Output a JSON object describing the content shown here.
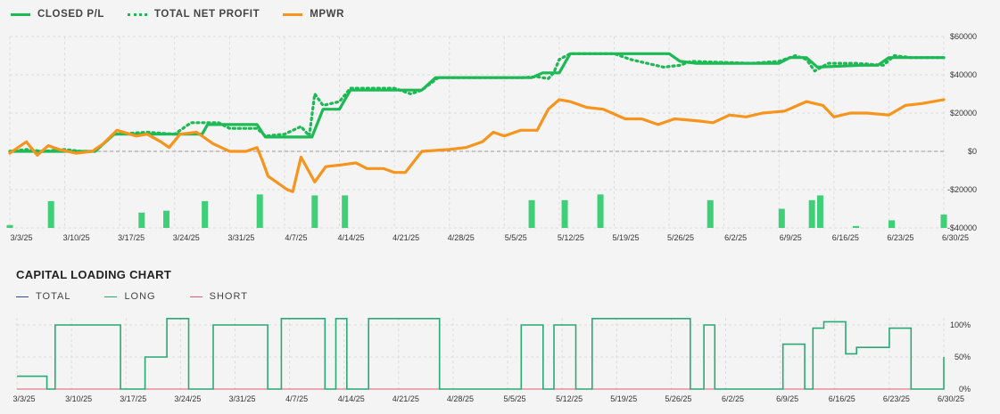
{
  "chart_data": [
    {
      "type": "line",
      "legend": [
        {
          "name": "CLOSED P/L",
          "color": "#1db954",
          "style": "solid"
        },
        {
          "name": "TOTAL NET PROFIT",
          "color": "#1db954",
          "style": "dotted"
        },
        {
          "name": "MPWR",
          "color": "#f7941d",
          "style": "solid"
        }
      ],
      "x_tick_labels": [
        "3/3/25",
        "3/10/25",
        "3/17/25",
        "3/24/25",
        "3/31/25",
        "4/7/25",
        "4/14/25",
        "4/21/25",
        "4/28/25",
        "5/5/25",
        "5/12/25",
        "5/19/25",
        "5/26/25",
        "6/2/25",
        "6/9/25",
        "6/16/25",
        "6/23/25",
        "6/30/25"
      ],
      "x_range": [
        0,
        17
      ],
      "ylim": [
        -40000,
        60000
      ],
      "y_tick_values": [
        -40000,
        -20000,
        0,
        20000,
        40000,
        60000
      ],
      "y_tick_labels": [
        "-$40000",
        "-$20000",
        "$0",
        "$20000",
        "$40000",
        "$60000"
      ],
      "grid": true,
      "series": [
        {
          "name": "CLOSED P/L",
          "points": [
            [
              0,
              0
            ],
            [
              1.55,
              0
            ],
            [
              1.9,
              9000
            ],
            [
              3.5,
              9000
            ],
            [
              3.6,
              14000
            ],
            [
              4.5,
              14000
            ],
            [
              4.65,
              7500
            ],
            [
              5.5,
              7500
            ],
            [
              5.7,
              22000
            ],
            [
              6,
              22000
            ],
            [
              6.2,
              32000
            ],
            [
              7.5,
              32000
            ],
            [
              7.75,
              38500
            ],
            [
              9.5,
              38500
            ],
            [
              9.7,
              41000
            ],
            [
              10,
              41000
            ],
            [
              10.2,
              51000
            ],
            [
              12,
              51000
            ],
            [
              12.2,
              47000
            ],
            [
              12.5,
              46000
            ],
            [
              14,
              46000
            ],
            [
              14.2,
              49000
            ],
            [
              14.5,
              49000
            ],
            [
              14.7,
              44000
            ],
            [
              15.5,
              45000
            ],
            [
              15.8,
              45000
            ],
            [
              16,
              49000
            ],
            [
              17,
              49000
            ]
          ]
        },
        {
          "name": "TOTAL NET PROFIT",
          "points": [
            [
              0,
              0
            ],
            [
              0.3,
              1000
            ],
            [
              0.6,
              0
            ],
            [
              1,
              1000
            ],
            [
              1.3,
              0
            ],
            [
              1.55,
              0
            ],
            [
              1.9,
              9000
            ],
            [
              2.5,
              10000
            ],
            [
              3,
              9000
            ],
            [
              3.3,
              15000
            ],
            [
              3.8,
              15000
            ],
            [
              4,
              12000
            ],
            [
              4.5,
              12000
            ],
            [
              4.65,
              8000
            ],
            [
              5,
              9000
            ],
            [
              5.3,
              13000
            ],
            [
              5.45,
              8000
            ],
            [
              5.55,
              30000
            ],
            [
              5.7,
              24000
            ],
            [
              6,
              26000
            ],
            [
              6.2,
              33000
            ],
            [
              7,
              33000
            ],
            [
              7.3,
              30000
            ],
            [
              7.5,
              32000
            ],
            [
              7.8,
              38500
            ],
            [
              9.3,
              38500
            ],
            [
              9.6,
              39000
            ],
            [
              9.8,
              38000
            ],
            [
              9.9,
              41000
            ],
            [
              10,
              48000
            ],
            [
              10.2,
              51000
            ],
            [
              11,
              51000
            ],
            [
              11.3,
              48000
            ],
            [
              11.6,
              46000
            ],
            [
              11.9,
              44000
            ],
            [
              12.2,
              45000
            ],
            [
              12.4,
              47000
            ],
            [
              13.5,
              46000
            ],
            [
              14,
              47000
            ],
            [
              14.3,
              50000
            ],
            [
              14.5,
              48000
            ],
            [
              14.65,
              42000
            ],
            [
              14.9,
              46000
            ],
            [
              15.4,
              46000
            ],
            [
              15.9,
              45000
            ],
            [
              16.1,
              50000
            ],
            [
              16.4,
              49000
            ],
            [
              17,
              49000
            ]
          ]
        },
        {
          "name": "MPWR",
          "points": [
            [
              0,
              -1000
            ],
            [
              0.3,
              5000
            ],
            [
              0.5,
              -2000
            ],
            [
              0.7,
              3000
            ],
            [
              0.9,
              1000
            ],
            [
              1.2,
              -1000
            ],
            [
              1.5,
              0
            ],
            [
              1.7,
              4000
            ],
            [
              1.95,
              11000
            ],
            [
              2.3,
              8000
            ],
            [
              2.5,
              9000
            ],
            [
              2.75,
              5000
            ],
            [
              2.9,
              2000
            ],
            [
              3.1,
              9000
            ],
            [
              3.4,
              10000
            ],
            [
              3.7,
              4000
            ],
            [
              4,
              0
            ],
            [
              4.3,
              0
            ],
            [
              4.5,
              2000
            ],
            [
              4.6,
              -5000
            ],
            [
              4.7,
              -13000
            ],
            [
              5.05,
              -20000
            ],
            [
              5.15,
              -21000
            ],
            [
              5.3,
              -3000
            ],
            [
              5.55,
              -16000
            ],
            [
              5.75,
              -8000
            ],
            [
              6.05,
              -7000
            ],
            [
              6.3,
              -6000
            ],
            [
              6.5,
              -9000
            ],
            [
              6.8,
              -9000
            ],
            [
              7,
              -11000
            ],
            [
              7.2,
              -11000
            ],
            [
              7.5,
              0
            ],
            [
              8,
              1000
            ],
            [
              8.3,
              2000
            ],
            [
              8.6,
              5000
            ],
            [
              8.8,
              10000
            ],
            [
              9,
              8000
            ],
            [
              9.3,
              11000
            ],
            [
              9.6,
              11000
            ],
            [
              9.8,
              22000
            ],
            [
              10,
              27000
            ],
            [
              10.2,
              26000
            ],
            [
              10.5,
              23000
            ],
            [
              10.8,
              22000
            ],
            [
              11.2,
              17000
            ],
            [
              11.5,
              17000
            ],
            [
              11.8,
              14000
            ],
            [
              12.1,
              17000
            ],
            [
              12.5,
              16000
            ],
            [
              12.8,
              15000
            ],
            [
              13.1,
              19000
            ],
            [
              13.4,
              18000
            ],
            [
              13.7,
              20000
            ],
            [
              14.1,
              21000
            ],
            [
              14.5,
              26000
            ],
            [
              14.8,
              24000
            ],
            [
              15,
              18000
            ],
            [
              15.3,
              20000
            ],
            [
              15.6,
              20000
            ],
            [
              16,
              19000
            ],
            [
              16.3,
              24000
            ],
            [
              16.6,
              25000
            ],
            [
              17,
              27000
            ]
          ]
        }
      ],
      "bars": [
        [
          0,
          -38500
        ],
        [
          0.75,
          -26000
        ],
        [
          2.4,
          -32000
        ],
        [
          2.85,
          -31000
        ],
        [
          3.55,
          -26000
        ],
        [
          4.55,
          -22500
        ],
        [
          5.55,
          -23000
        ],
        [
          6.1,
          -23000
        ],
        [
          9.5,
          -25500
        ],
        [
          10.1,
          -25500
        ],
        [
          10.75,
          -22500
        ],
        [
          12.75,
          -25500
        ],
        [
          14.05,
          -30000
        ],
        [
          14.6,
          -25500
        ],
        [
          14.75,
          -23000
        ],
        [
          15.4,
          -39000
        ],
        [
          16.05,
          -36000
        ],
        [
          17,
          -33000
        ]
      ]
    },
    {
      "type": "line",
      "title": "CAPITAL LOADING CHART",
      "legend": [
        {
          "name": "TOTAL",
          "color": "#2e4a9e"
        },
        {
          "name": "LONG",
          "color": "#2aa876"
        },
        {
          "name": "SHORT",
          "color": "#e45b6e"
        }
      ],
      "x_tick_labels": [
        "3/3/25",
        "3/10/25",
        "3/17/25",
        "3/24/25",
        "3/31/25",
        "4/7/25",
        "4/14/25",
        "4/21/25",
        "4/28/25",
        "5/5/25",
        "5/12/25",
        "5/19/25",
        "5/26/25",
        "6/2/25",
        "6/9/25",
        "6/16/25",
        "6/23/25",
        "6/30/25"
      ],
      "x_range": [
        0,
        17
      ],
      "ylim": [
        0,
        100
      ],
      "y_tick_values": [
        0,
        50,
        100
      ],
      "y_tick_labels": [
        "0%",
        "50%",
        "100%"
      ],
      "series": [
        {
          "name": "LONG",
          "points": [
            [
              0,
              20
            ],
            [
              0.55,
              20
            ],
            [
              0.55,
              0
            ],
            [
              0.7,
              0
            ],
            [
              0.7,
              100
            ],
            [
              1.9,
              100
            ],
            [
              1.9,
              0
            ],
            [
              2.35,
              0
            ],
            [
              2.35,
              50
            ],
            [
              2.75,
              50
            ],
            [
              2.75,
              110
            ],
            [
              3.15,
              110
            ],
            [
              3.15,
              0
            ],
            [
              3.6,
              0
            ],
            [
              3.6,
              100
            ],
            [
              4.6,
              100
            ],
            [
              4.6,
              0
            ],
            [
              4.85,
              0
            ],
            [
              4.85,
              110
            ],
            [
              5.65,
              110
            ],
            [
              5.65,
              0
            ],
            [
              5.85,
              0
            ],
            [
              5.85,
              110
            ],
            [
              6.05,
              110
            ],
            [
              6.05,
              0
            ],
            [
              6.45,
              0
            ],
            [
              6.45,
              110
            ],
            [
              7.75,
              110
            ],
            [
              7.75,
              0
            ],
            [
              9.25,
              0
            ],
            [
              9.25,
              100
            ],
            [
              9.65,
              100
            ],
            [
              9.65,
              0
            ],
            [
              9.85,
              0
            ],
            [
              9.85,
              100
            ],
            [
              10.25,
              100
            ],
            [
              10.25,
              0
            ],
            [
              10.55,
              0
            ],
            [
              10.55,
              110
            ],
            [
              12.35,
              110
            ],
            [
              12.35,
              0
            ],
            [
              12.6,
              0
            ],
            [
              12.6,
              100
            ],
            [
              12.8,
              100
            ],
            [
              12.8,
              0
            ],
            [
              14.05,
              0
            ],
            [
              14.05,
              70
            ],
            [
              14.45,
              70
            ],
            [
              14.45,
              0
            ],
            [
              14.6,
              0
            ],
            [
              14.6,
              95
            ],
            [
              14.8,
              95
            ],
            [
              14.8,
              105
            ],
            [
              15.2,
              105
            ],
            [
              15.2,
              55
            ],
            [
              15.4,
              55
            ],
            [
              15.4,
              65
            ],
            [
              16,
              65
            ],
            [
              16,
              95
            ],
            [
              16.4,
              95
            ],
            [
              16.4,
              0
            ],
            [
              17,
              0
            ],
            [
              17,
              50
            ]
          ]
        }
      ]
    }
  ]
}
